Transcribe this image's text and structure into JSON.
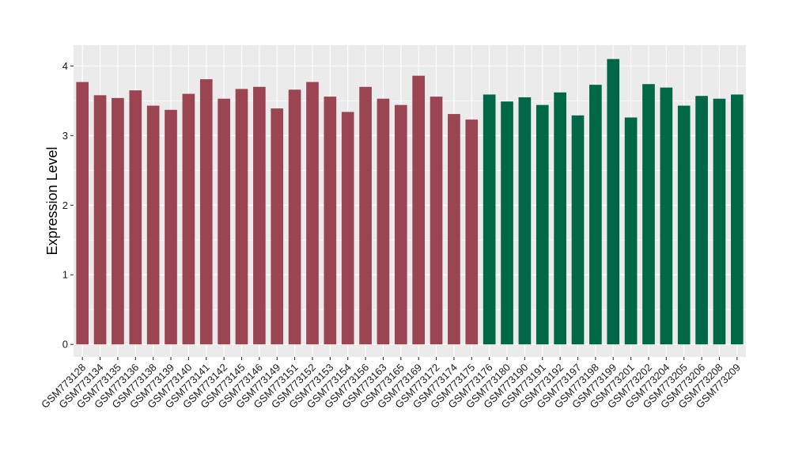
{
  "chart_data": {
    "type": "bar",
    "ylabel": "Expression Level",
    "xlabel": "",
    "title": "",
    "ylim": [
      -0.18,
      4.3
    ],
    "yticks": [
      0,
      1,
      2,
      3,
      4
    ],
    "grid": true,
    "background": "#ebebeb",
    "gridline_color": "#ffffff",
    "categories": [
      "GSM773128",
      "GSM773134",
      "GSM773135",
      "GSM773136",
      "GSM773138",
      "GSM773139",
      "GSM773140",
      "GSM773141",
      "GSM773142",
      "GSM773145",
      "GSM773146",
      "GSM773149",
      "GSM773151",
      "GSM773152",
      "GSM773153",
      "GSM773154",
      "GSM773156",
      "GSM773163",
      "GSM773165",
      "GSM773169",
      "GSM773172",
      "GSM773174",
      "GSM773175",
      "GSM773176",
      "GSM773180",
      "GSM773190",
      "GSM773191",
      "GSM773192",
      "GSM773197",
      "GSM773198",
      "GSM773199",
      "GSM773201",
      "GSM773202",
      "GSM773204",
      "GSM773205",
      "GSM773206",
      "GSM773208",
      "GSM773209"
    ],
    "series": [
      {
        "color": "#9b4452",
        "values": [
          3.77,
          3.58,
          3.54,
          3.65,
          3.43,
          3.37,
          3.6,
          3.81,
          3.53,
          3.67,
          3.7,
          3.39,
          3.66,
          3.77,
          3.56,
          3.34,
          3.7,
          3.53,
          3.44,
          3.86,
          3.56,
          3.31,
          3.23,
          null,
          null,
          null,
          null,
          null,
          null,
          null,
          null,
          null,
          null,
          null,
          null,
          null,
          null,
          null
        ]
      },
      {
        "color": "#006847",
        "values": [
          null,
          null,
          null,
          null,
          null,
          null,
          null,
          null,
          null,
          null,
          null,
          null,
          null,
          null,
          null,
          null,
          null,
          null,
          null,
          null,
          null,
          null,
          null,
          3.59,
          3.49,
          3.55,
          3.44,
          3.62,
          3.29,
          3.73,
          4.1,
          3.26,
          3.74,
          3.69,
          3.43,
          3.57,
          3.53,
          3.59
        ]
      }
    ]
  }
}
